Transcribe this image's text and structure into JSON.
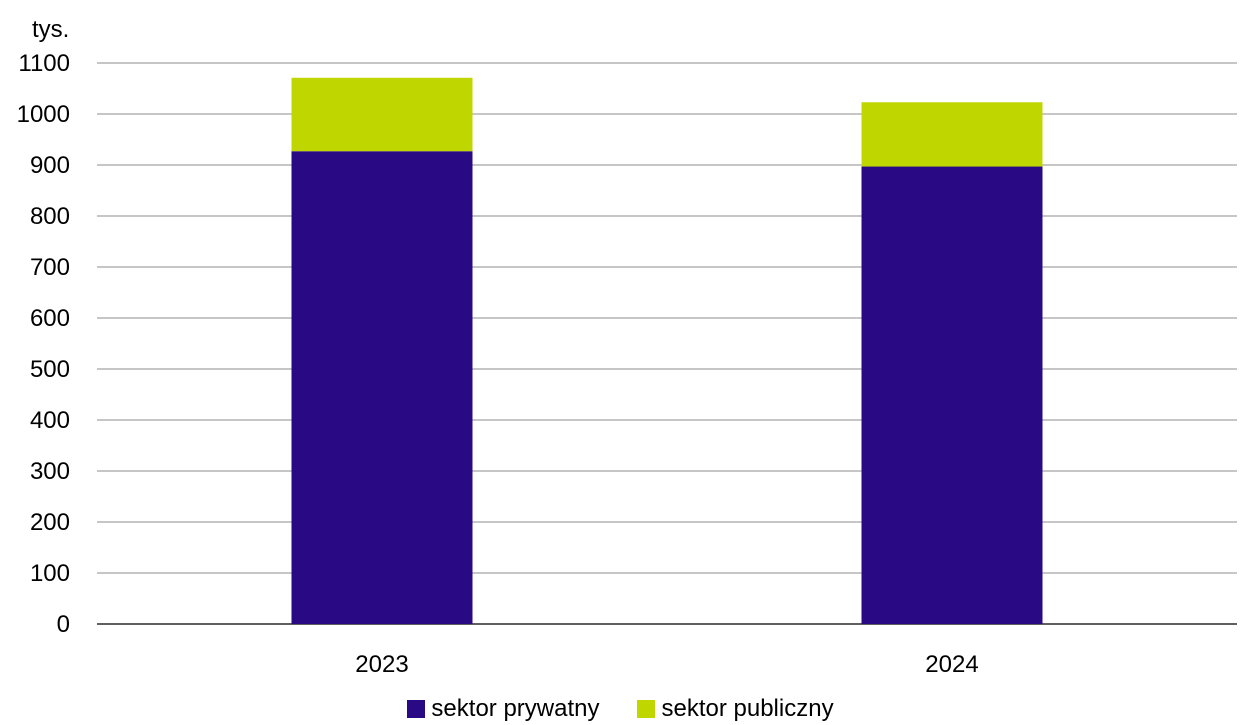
{
  "chart_data": {
    "type": "bar",
    "stacked": true,
    "unit_label": "tys.",
    "categories": [
      "2023",
      "2024"
    ],
    "series": [
      {
        "name": "sektor prywatny",
        "color": "#2a0a84",
        "values": [
          927,
          897
        ]
      },
      {
        "name": "sektor publiczny",
        "color": "#c0d600",
        "values": [
          144,
          126
        ]
      }
    ],
    "ylim": [
      0,
      1100
    ],
    "yticks": [
      "0",
      "100",
      "200",
      "300",
      "400",
      "500",
      "600",
      "700",
      "800",
      "900",
      "1000",
      "1100"
    ],
    "grid": true,
    "legend_position": "bottom"
  }
}
